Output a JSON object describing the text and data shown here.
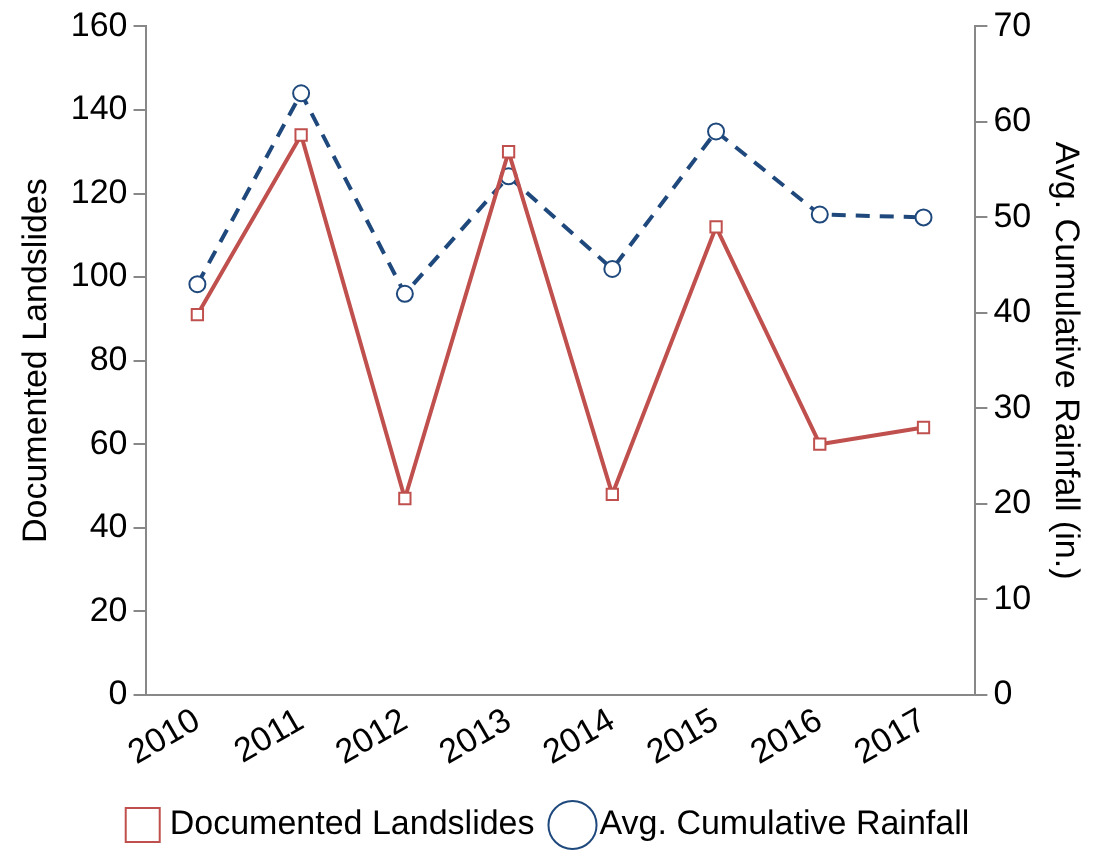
{
  "chart_data": {
    "type": "line",
    "categories": [
      "2010",
      "2011",
      "2012",
      "2013",
      "2014",
      "2015",
      "2016",
      "2017"
    ],
    "ylabel": "Documented Landslides",
    "y2label": "Avg. Cumulative Rainfall (in.)",
    "ylim": [
      0,
      160
    ],
    "yticks": [
      0,
      20,
      40,
      60,
      80,
      100,
      120,
      140,
      160
    ],
    "y2lim": [
      0,
      70
    ],
    "y2ticks": [
      0,
      10,
      20,
      30,
      40,
      50,
      60,
      70
    ],
    "grid": false,
    "legend": "bottom",
    "series": [
      {
        "name": "Documented Landslides",
        "color": "#c0504d",
        "values": [
          91,
          134,
          47,
          130,
          48,
          112,
          60,
          64
        ],
        "marker": "square",
        "line_style": "solid"
      },
      {
        "name": "Avg. Cumulative Rainfall",
        "color": "#1f497d",
        "values": [
          43,
          63,
          42,
          54.3,
          44.6,
          59,
          50.3,
          50
        ],
        "marker": "circle",
        "line_style": "dashed",
        "axis": "y2"
      }
    ]
  }
}
